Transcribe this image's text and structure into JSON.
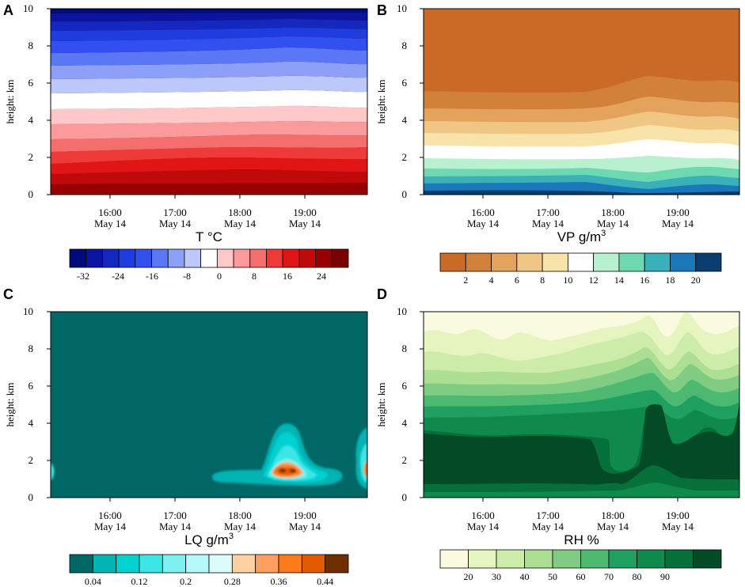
{
  "chart_data": [
    {
      "panel_label": "A",
      "type": "heatmap",
      "title": "T",
      "unit_text": "°C",
      "ylabel": "height: km",
      "ylim": [
        0,
        10
      ],
      "yticks": [
        "0",
        "2",
        "4",
        "6",
        "8",
        "10"
      ],
      "xtick_times": [
        "16:00",
        "17:00",
        "18:00",
        "19:00"
      ],
      "xtick_date": "May 14",
      "colorbar": {
        "colors": [
          "#000a7a",
          "#0a14a0",
          "#1428c0",
          "#1e3ce0",
          "#3250f0",
          "#5a78f5",
          "#8ca0f8",
          "#bcc8fa",
          "#ffffff",
          "#ffc8c8",
          "#fa9a9a",
          "#f56e6e",
          "#ef3a3a",
          "#e01616",
          "#c00a0a",
          "#960000",
          "#780000"
        ],
        "labels": [
          "-32",
          "-24",
          "-16",
          "-8",
          "0",
          "8",
          "16",
          "24"
        ]
      }
    },
    {
      "panel_label": "B",
      "type": "heatmap",
      "title": "VP",
      "unit_text": "g/m",
      "unit_sup": "3",
      "ylabel": "height: km",
      "ylim": [
        0,
        10
      ],
      "yticks": [
        "0",
        "2",
        "4",
        "6",
        "8",
        "10"
      ],
      "xtick_times": [
        "16:00",
        "17:00",
        "18:00",
        "19:00"
      ],
      "xtick_date": "May 14",
      "colorbar": {
        "colors": [
          "#c96a26",
          "#d2813a",
          "#e4a35c",
          "#f0c684",
          "#f8e4aa",
          "#ffffff",
          "#b8f0d0",
          "#6ed8b0",
          "#3ab0b8",
          "#1a78b8",
          "#0a3c70"
        ],
        "labels": [
          "2",
          "4",
          "6",
          "8",
          "10",
          "12",
          "14",
          "16",
          "18",
          "20"
        ]
      }
    },
    {
      "panel_label": "C",
      "type": "heatmap",
      "title": "LQ",
      "unit_text": "g/m",
      "unit_sup": "3",
      "ylabel": "height: km",
      "ylim": [
        0,
        10
      ],
      "yticks": [
        "0",
        "2",
        "4",
        "6",
        "8",
        "10"
      ],
      "xtick_times": [
        "16:00",
        "17:00",
        "18:00",
        "19:00"
      ],
      "xtick_date": "May 14",
      "colorbar": {
        "colors": [
          "#006666",
          "#00b4b4",
          "#00d2d2",
          "#3ce6e6",
          "#7ef0f0",
          "#b4f8f8",
          "#dcfcfc",
          "#ffd0a0",
          "#ffa060",
          "#ff7a1a",
          "#e05a00",
          "#6e2e00"
        ],
        "labels": [
          "0.04",
          "0.12",
          "0.2",
          "0.28",
          "0.36",
          "0.44"
        ]
      }
    },
    {
      "panel_label": "D",
      "type": "heatmap",
      "title": "RH",
      "unit_text": "%",
      "ylabel": "height: km",
      "ylim": [
        0,
        10
      ],
      "yticks": [
        "0",
        "2",
        "4",
        "6",
        "8",
        "10"
      ],
      "xtick_times": [
        "16:00",
        "17:00",
        "18:00",
        "19:00"
      ],
      "xtick_date": "May 14",
      "colorbar": {
        "colors": [
          "#fafae0",
          "#e6f5c0",
          "#cdecaa",
          "#acdf92",
          "#80cc82",
          "#4cb870",
          "#20a060",
          "#108a4c",
          "#06703a",
          "#034a26"
        ],
        "labels": [
          "20",
          "30",
          "40",
          "50",
          "60",
          "70",
          "80",
          "90"
        ]
      }
    }
  ]
}
